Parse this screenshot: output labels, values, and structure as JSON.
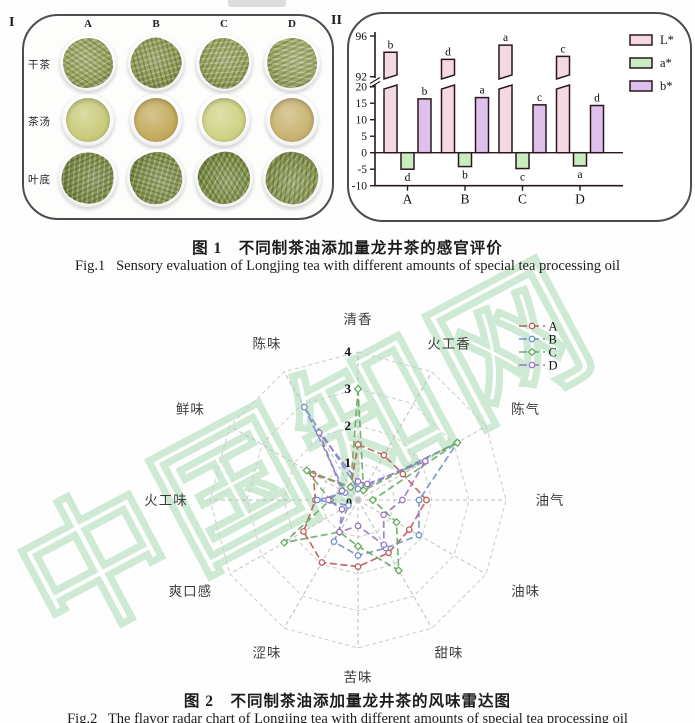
{
  "watermark": {
    "text": "中国知网",
    "color": "#bfe4c6"
  },
  "figure1": {
    "panel_photos": {
      "tag": "I",
      "col_headers": [
        "A",
        "B",
        "C",
        "D"
      ],
      "row_labels": [
        "干茶",
        "茶汤",
        "叶底"
      ],
      "dry_tea_colors": [
        "#9aa55e",
        "#8f9a52",
        "#97a45c",
        "#a0aa66"
      ],
      "soup_colors": [
        "#c9cb7c",
        "#c3ab5e",
        "#ced384",
        "#c8b372"
      ],
      "infused_leaf_colors": [
        "#7c8c46",
        "#81924b",
        "#7d8f45",
        "#86954e"
      ]
    },
    "panel_colorimetry": {
      "tag": "II"
    },
    "caption_zh": "图 1　不同制茶油添加量龙井茶的感官评价",
    "caption_en": "Fig.1   Sensory evaluation of Longjing tea with different amounts of special tea processing oil"
  },
  "figure2": {
    "caption_zh": "图 2　不同制茶油添加量龙井茶的风味雷达图",
    "caption_en": "Fig.2   The flavor radar chart of Longjing tea with different amounts of special tea processing oil"
  },
  "chart_data": [
    {
      "type": "bar",
      "panel": "II",
      "categories": [
        "A",
        "B",
        "C",
        "D"
      ],
      "series": [
        {
          "name": "L*",
          "color": "#f5d9e2",
          "values": [
            94.4,
            93.7,
            95.1,
            94.0
          ],
          "letters": [
            "b",
            "d",
            "a",
            "c"
          ]
        },
        {
          "name": "a*",
          "color": "#c7edc0",
          "values": [
            -5.0,
            -4.2,
            -4.8,
            -4.0
          ],
          "letters": [
            "d",
            "b",
            "c",
            "a"
          ]
        },
        {
          "name": "b*",
          "color": "#ddc1ec",
          "values": [
            16.3,
            16.7,
            14.5,
            14.3
          ],
          "letters": [
            "b",
            "a",
            "c",
            "d"
          ]
        }
      ],
      "y_axis": {
        "upper_ticks": [
          96,
          92
        ],
        "lower_ticks": [
          20,
          15,
          10,
          5,
          0,
          -5,
          -10
        ],
        "upper_range": [
          92,
          96
        ],
        "lower_range": [
          -10,
          20
        ],
        "axis_break": true
      },
      "border_color": "#2a171c",
      "legend": [
        "L*",
        "a*",
        "b*"
      ],
      "legend_position": "right"
    },
    {
      "type": "radar",
      "axes": [
        "清香",
        "火工香",
        "陈气",
        "油气",
        "油味",
        "甜味",
        "苦味",
        "涩味",
        "爽口感",
        "火工味",
        "鲜味",
        "陈味"
      ],
      "rmin": 0,
      "rmax": 4,
      "tick_values": [
        1,
        2,
        3,
        4
      ],
      "center_label": "0",
      "grid": "dashed-web",
      "legend_position": "top-right",
      "series": [
        {
          "name": "A",
          "color": "#c05a58",
          "marker": "circle",
          "values": [
            1.5,
            1.4,
            1.4,
            1.85,
            1.6,
            1.65,
            1.8,
            1.95,
            1.7,
            1.15,
            1.4,
            0.4
          ]
        },
        {
          "name": "B",
          "color": "#7191cc",
          "marker": "circle",
          "values": [
            0.3,
            0.4,
            3.1,
            1.65,
            1.9,
            1.5,
            1.5,
            1.3,
            0.3,
            1.1,
            0.4,
            2.9
          ]
        },
        {
          "name": "C",
          "color": "#69ab64",
          "marker": "diamond",
          "values": [
            3.0,
            0.3,
            3.1,
            0.4,
            1.2,
            2.2,
            1.25,
            1.0,
            2.3,
            0.75,
            1.6,
            0.4
          ]
        },
        {
          "name": "D",
          "color": "#9b72c4",
          "marker": "circle",
          "values": [
            0.5,
            0.5,
            2.1,
            1.2,
            0.8,
            1.4,
            0.7,
            1.0,
            0.5,
            0.8,
            0.5,
            2.1
          ]
        }
      ]
    }
  ]
}
